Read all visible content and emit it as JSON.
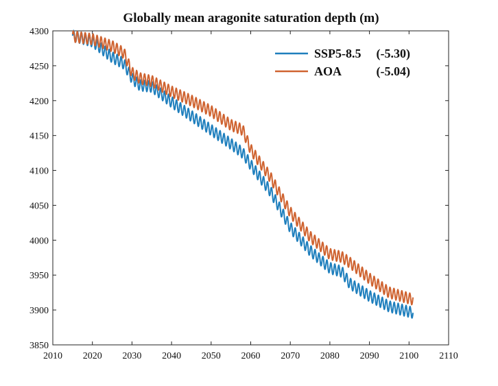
{
  "chart_data": {
    "type": "line",
    "title": "Globally mean aragonite saturation depth (m)",
    "xlabel": "",
    "ylabel": "",
    "xlim": [
      2010,
      2110
    ],
    "ylim": [
      3850,
      4300
    ],
    "xticks": [
      2010,
      2020,
      2030,
      2040,
      2050,
      2060,
      2070,
      2080,
      2090,
      2100,
      2110
    ],
    "yticks": [
      3850,
      3900,
      3950,
      4000,
      4050,
      4100,
      4150,
      4200,
      4250,
      4300
    ],
    "grid": false,
    "legend_position": "top-right",
    "seasonal_amplitude": {
      "SSP5-8.5": 8,
      "AOA": 8
    },
    "series": [
      {
        "name": "SSP5-8.5",
        "annotation": "(-5.30)",
        "color": "#1f7fbd",
        "x": [
          2015,
          2020,
          2025,
          2028,
          2030,
          2032,
          2035,
          2040,
          2045,
          2050,
          2055,
          2058,
          2060,
          2065,
          2070,
          2075,
          2080,
          2083,
          2085,
          2090,
          2095,
          2101
        ],
        "y": [
          4293,
          4285,
          4262,
          4253,
          4232,
          4222,
          4220,
          4198,
          4178,
          4158,
          4138,
          4125,
          4108,
          4070,
          4018,
          3985,
          3960,
          3955,
          3938,
          3920,
          3905,
          3896
        ]
      },
      {
        "name": "AOA",
        "annotation": "(-5.04)",
        "color": "#cf6330",
        "x": [
          2015,
          2020,
          2025,
          2028,
          2030,
          2032,
          2035,
          2040,
          2045,
          2050,
          2055,
          2058,
          2060,
          2065,
          2070,
          2075,
          2080,
          2083,
          2085,
          2090,
          2095,
          2101
        ],
        "y": [
          4292,
          4288,
          4278,
          4268,
          4240,
          4232,
          4228,
          4213,
          4200,
          4185,
          4165,
          4158,
          4130,
          4090,
          4040,
          4005,
          3980,
          3976,
          3968,
          3945,
          3925,
          3915
        ]
      }
    ]
  }
}
